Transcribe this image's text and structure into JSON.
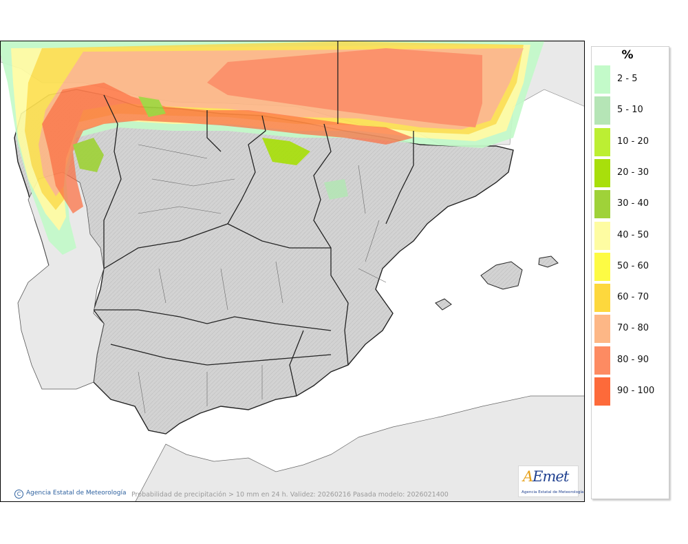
{
  "map": {
    "caption": "Probabilidad de precipitación > 10 mm en 24 h. Validez: 20260216 Pasada modelo: 2026021400",
    "credit": "Agencia Estatal de Meteorología",
    "credit_symbol": "C",
    "logo_mark_a": "A",
    "logo_mark_rest": "Emet",
    "logo_sub": "Agencia Estatal de Meteorología"
  },
  "legend": {
    "unit": "%",
    "items": [
      {
        "label": "2 - 5",
        "color": "#c3fac9"
      },
      {
        "label": "5 - 10",
        "color": "#b5e5b6"
      },
      {
        "label": "10 - 20",
        "color": "#bcef33"
      },
      {
        "label": "20 - 30",
        "color": "#a8df0b"
      },
      {
        "label": "30 - 40",
        "color": "#9fd239"
      },
      {
        "label": "40 - 50",
        "color": "#fefca2"
      },
      {
        "label": "50 - 60",
        "color": "#fdfb44"
      },
      {
        "label": "60 - 70",
        "color": "#fdd83d"
      },
      {
        "label": "70 - 80",
        "color": "#fdb786"
      },
      {
        "label": "80 - 90",
        "color": "#fd8b62"
      },
      {
        "label": "90 - 100",
        "color": "#fd6a3a"
      }
    ]
  },
  "colors": {
    "land": "#d6d6d6",
    "land_foreign": "#e9e9e9",
    "sea": "#ffffff",
    "border": "#222222"
  }
}
